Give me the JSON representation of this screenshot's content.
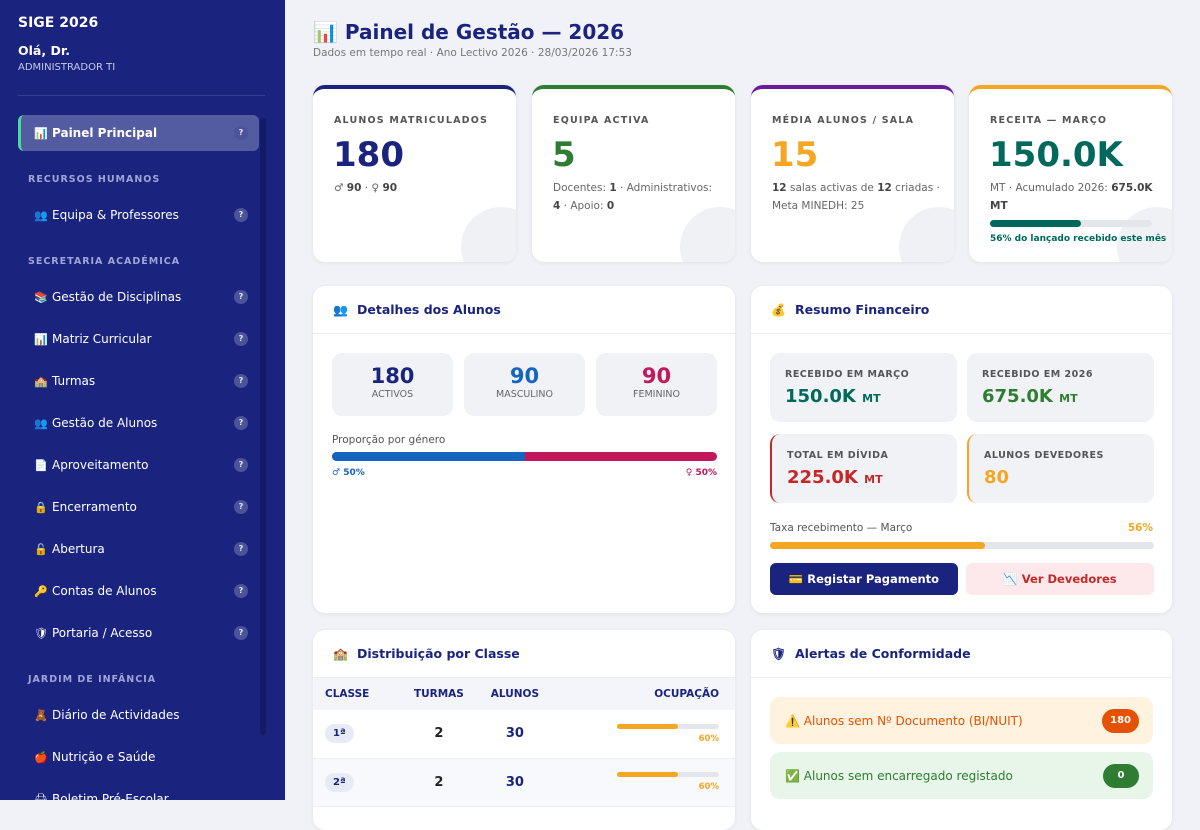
{
  "sidebar": {
    "brand": "SIGE 2026",
    "greeting": "Olá, Dr.",
    "role": "ADMINISTRADOR TI",
    "active": {
      "icon": "📊",
      "label": "Painel Principal"
    },
    "sections": [
      "RECURSOS HUMANOS",
      "SECRETARIA ACADÉMICA",
      "JARDIM DE INFÂNCIA"
    ],
    "items": [
      {
        "icon": "👥",
        "label": "Equipa & Professores"
      },
      {
        "icon": "📚",
        "label": "Gestão de Disciplinas"
      },
      {
        "icon": "📊",
        "label": "Matriz Curricular"
      },
      {
        "icon": "🏫",
        "label": "Turmas"
      },
      {
        "icon": "👥",
        "label": "Gestão de Alunos"
      },
      {
        "icon": "📄",
        "label": "Aproveitamento"
      },
      {
        "icon": "🔒",
        "label": "Encerramento"
      },
      {
        "icon": "🔓",
        "label": "Abertura"
      },
      {
        "icon": "🔑",
        "label": "Contas de Alunos"
      },
      {
        "icon": "🛡",
        "label": "Portaria / Acesso"
      },
      {
        "icon": "🧸",
        "label": "Diário de Actividades"
      },
      {
        "icon": "🍎",
        "label": "Nutrição e Saúde"
      },
      {
        "icon": "🖨",
        "label": "Boletim Pré-Escolar"
      }
    ],
    "help": "?"
  },
  "header": {
    "icon": "📊",
    "title": "Painel de Gestão — 2026",
    "subtitle": "Dados em tempo real · Ano Lectivo 2026 · 28/03/2026 17:53"
  },
  "stats": {
    "alunos": {
      "label": "ALUNOS MATRICULADOS",
      "value": "180",
      "male_sym": "♂",
      "male": "90",
      "sep": "·",
      "female_sym": "♀",
      "female": "90",
      "color": "#1a237e"
    },
    "equipa": {
      "label": "EQUIPA ACTIVA",
      "value": "5",
      "docentes_l": "Docentes:",
      "docentes": "1",
      "admin_l": "Administrativos:",
      "admin": "4",
      "apoio_l": "Apoio:",
      "apoio": "0",
      "color": "#2e7d32"
    },
    "media": {
      "label": "MÉDIA ALUNOS / SALA",
      "value": "15",
      "salas": "12",
      "salas_t": "salas activas de",
      "criadas": "12",
      "criadas_t": "criadas",
      "meta": "Meta MINEDH: 25",
      "color": "#f5a623"
    },
    "receita": {
      "label": "RECEITA — MARÇO",
      "value": "150.0K",
      "unit": "MT",
      "acum_l": "Acumulado 2026:",
      "acum": "675.0K MT",
      "progress": 56,
      "note": "56% do lançado recebido este mês",
      "color": "#00695c"
    }
  },
  "alunos_panel": {
    "icon": "👥",
    "title": "Detalhes dos Alunos",
    "activos": "180",
    "activos_l": "ACTIVOS",
    "masc": "90",
    "masc_l": "MASCULINO",
    "fem": "90",
    "fem_l": "FEMININO",
    "prop_l": "Proporção por género",
    "male_pct": "50%",
    "female_pct": "50%",
    "male_sym": "♂",
    "female_sym": "♀",
    "male_share": 50
  },
  "fin": {
    "icon": "💰",
    "title": "Resumo Financeiro",
    "rec_marco_l": "RECEBIDO EM MARÇO",
    "rec_marco": "150.0K",
    "rec_ano_l": "RECEBIDO EM 2026",
    "rec_ano": "675.0K",
    "divida_l": "TOTAL EM DÍVIDA",
    "divida": "225.0K",
    "devedores_l": "ALUNOS DEVEDORES",
    "devedores": "80",
    "unit": "MT",
    "taxa_l": "Taxa recebimento — Março",
    "taxa": "56%",
    "taxa_value": 56,
    "btn_pay_icon": "💳",
    "btn_pay": "Registar Pagamento",
    "btn_debt_icon": "📉",
    "btn_debt": "Ver Devedores"
  },
  "dist": {
    "icon": "🏫",
    "title": "Distribuição por Classe",
    "headers": [
      "CLASSE",
      "TURMAS",
      "ALUNOS",
      "OCUPAÇÃO"
    ],
    "rows": [
      {
        "classe": "1ª",
        "turmas": "2",
        "alunos": "30",
        "ocup": "60%",
        "ocup_value": 60
      },
      {
        "classe": "2ª",
        "turmas": "2",
        "alunos": "30",
        "ocup": "60%",
        "ocup_value": 60
      }
    ]
  },
  "alerts": {
    "icon": "🛡",
    "title": "Alertas de Conformidade",
    "items": [
      {
        "icon": "⚠️",
        "label": "Alunos sem Nº Documento (BI/NUIT)",
        "count": "180"
      },
      {
        "icon": "✅",
        "label": "Alunos sem encarregado registado",
        "count": "0"
      }
    ]
  }
}
